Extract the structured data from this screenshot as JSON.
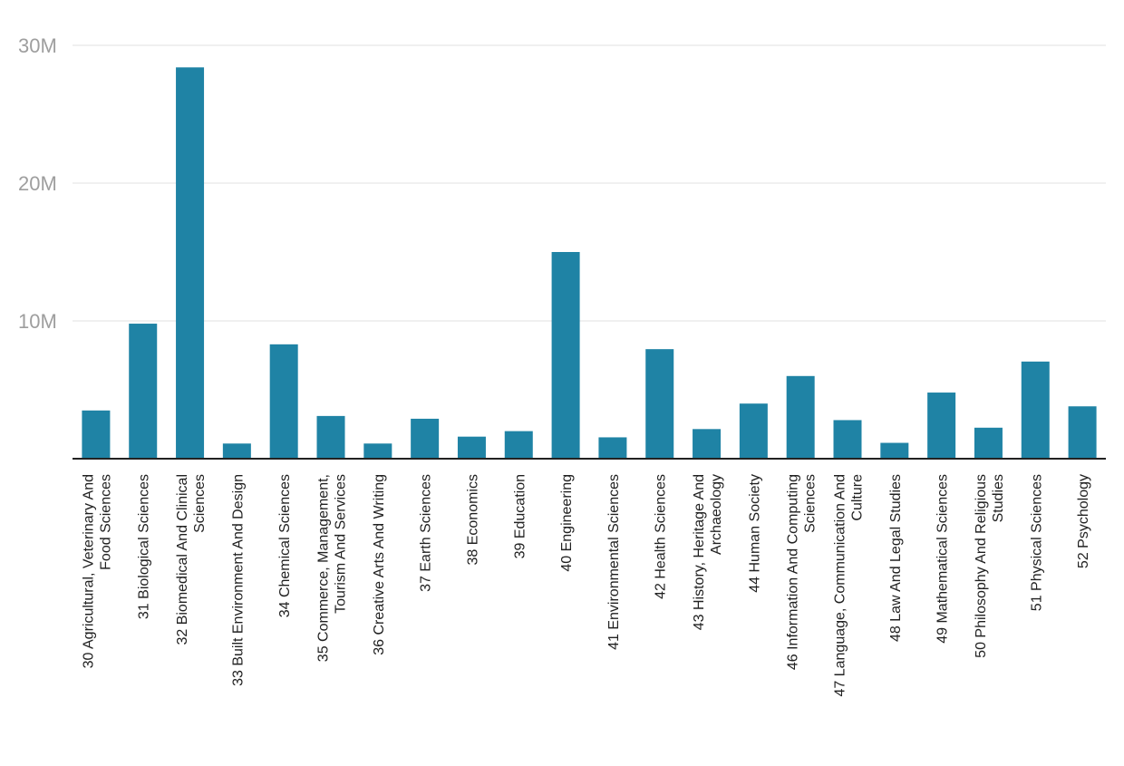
{
  "chart_data": {
    "type": "bar",
    "title": "",
    "xlabel": "",
    "ylabel": "",
    "ylim": [
      0,
      30000000
    ],
    "y_ticks": [
      {
        "value": 10000000,
        "label": "10M"
      },
      {
        "value": 20000000,
        "label": "20M"
      },
      {
        "value": 30000000,
        "label": "30M"
      }
    ],
    "grid": true,
    "legend": "none",
    "bar_color": "#1f83a5",
    "categories": [
      "30 Agricultural, Veterinary And Food Sciences",
      "31 Biological Sciences",
      "32 Biomedical And Clinical Sciences",
      "33 Built Environment And Design",
      "34 Chemical Sciences",
      "35 Commerce, Management, Tourism And Services",
      "36 Creative Arts And Writing",
      "37 Earth Sciences",
      "38 Economics",
      "39 Education",
      "40 Engineering",
      "41 Environmental Sciences",
      "42 Health Sciences",
      "43 History, Heritage And Archaeology",
      "44 Human Society",
      "46 Information And Computing Sciences",
      "47 Language, Communication And Culture",
      "48 Law And Legal Studies",
      "49 Mathematical Sciences",
      "50 Philosophy And Religious Studies",
      "51 Physical Sciences",
      "52 Psychology"
    ],
    "category_label_lines": [
      [
        "30 Agricultural, Veterinary And",
        "Food Sciences"
      ],
      [
        "31 Biological Sciences"
      ],
      [
        "32 Biomedical And Clinical",
        "Sciences"
      ],
      [
        "33 Built Environment And Design"
      ],
      [
        "34 Chemical Sciences"
      ],
      [
        "35 Commerce, Management,",
        "Tourism And Services"
      ],
      [
        "36 Creative Arts And Writing"
      ],
      [
        "37 Earth Sciences"
      ],
      [
        "38 Economics"
      ],
      [
        "39 Education"
      ],
      [
        "40 Engineering"
      ],
      [
        "41 Environmental Sciences"
      ],
      [
        "42 Health Sciences"
      ],
      [
        "43 History, Heritage And",
        "Archaeology"
      ],
      [
        "44 Human Society"
      ],
      [
        "46 Information And Computing",
        "Sciences"
      ],
      [
        "47 Language, Communication And",
        "Culture"
      ],
      [
        "48 Law And Legal Studies"
      ],
      [
        "49 Mathematical Sciences"
      ],
      [
        "50 Philosophy And Religious",
        "Studies"
      ],
      [
        "51 Physical Sciences"
      ],
      [
        "52 Psychology"
      ]
    ],
    "values": [
      3500000,
      9800000,
      28400000,
      1100000,
      8300000,
      3100000,
      1100000,
      2900000,
      1600000,
      2000000,
      15000000,
      1550000,
      7950000,
      2150000,
      4000000,
      6000000,
      2800000,
      1150000,
      4800000,
      2250000,
      7050000,
      3800000
    ]
  }
}
